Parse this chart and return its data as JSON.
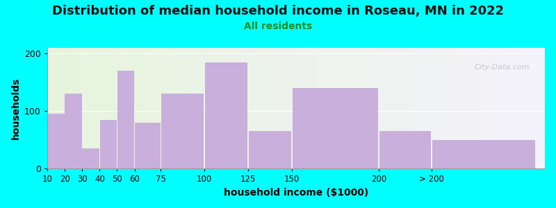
{
  "title": "Distribution of median household income in Roseau, MN in 2022",
  "subtitle": "All residents",
  "xlabel": "household income ($1000)",
  "ylabel": "households",
  "background_outer": "#00FFFF",
  "bar_color": "#C9AFDC",
  "bar_edgecolor": "#C9AFDC",
  "bin_lefts": [
    10,
    20,
    30,
    40,
    50,
    60,
    75,
    100,
    125,
    150,
    200,
    230
  ],
  "bin_widths": [
    10,
    10,
    10,
    10,
    10,
    15,
    25,
    25,
    25,
    50,
    30,
    60
  ],
  "values": [
    95,
    130,
    35,
    85,
    170,
    80,
    130,
    185,
    65,
    140,
    65,
    50
  ],
  "xtick_positions": [
    10,
    20,
    30,
    40,
    50,
    60,
    75,
    100,
    125,
    150,
    200,
    230
  ],
  "xtick_labels": [
    "10",
    "20",
    "30",
    "40",
    "50",
    "60",
    "75",
    "100",
    "125",
    "150",
    "200",
    "> 200"
  ],
  "ylim": [
    0,
    210
  ],
  "yticks": [
    0,
    100,
    200
  ],
  "xlim": [
    10,
    295
  ],
  "watermark": "City-Data.com",
  "title_fontsize": 13,
  "subtitle_fontsize": 10,
  "subtitle_color": "#228B22",
  "axis_label_fontsize": 10
}
